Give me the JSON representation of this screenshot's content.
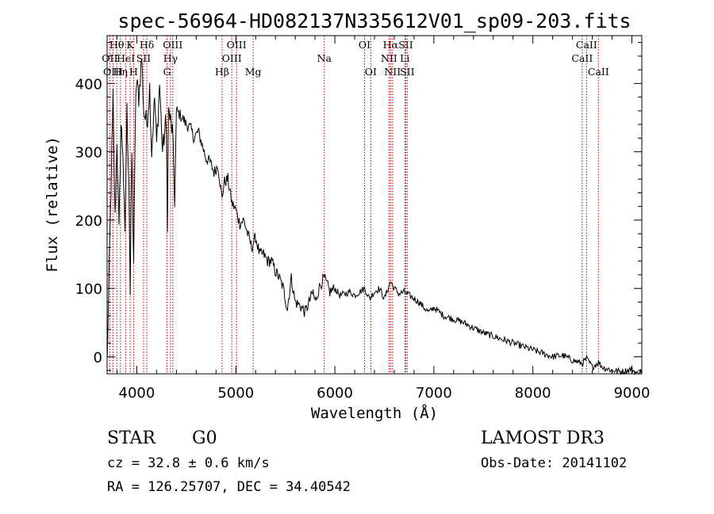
{
  "title": "spec-56964-HD082137N335612V01_sp09-203.fits",
  "info": {
    "object_class": "STAR",
    "subclass": "G0",
    "survey": "LAMOST DR3",
    "redshift": "cz = 32.8 ± 0.6 km/s",
    "obs_date": "Obs-Date: 20141102",
    "coords": "RA = 126.25707, DEC =  34.40542"
  },
  "chart_data": {
    "type": "line",
    "title": "spec-56964-HD082137N335612V01_sp09-203.fits",
    "xlabel": "Wavelength (Å)",
    "ylabel": "Flux (relative)",
    "xlim": [
      3700,
      9100
    ],
    "ylim": [
      -25,
      470
    ],
    "xticks": [
      4000,
      5000,
      6000,
      7000,
      8000,
      9000
    ],
    "yticks": [
      0,
      100,
      200,
      300,
      400
    ],
    "grid": false,
    "series": [
      {
        "name": "flux",
        "color": "#000000",
        "x": [
          3700,
          3720,
          3740,
          3760,
          3780,
          3800,
          3820,
          3840,
          3860,
          3880,
          3900,
          3920,
          3933,
          3950,
          3968,
          3990,
          4000,
          4020,
          4050,
          4070,
          4101,
          4130,
          4150,
          4180,
          4200,
          4230,
          4260,
          4290,
          4300,
          4310,
          4320,
          4340,
          4360,
          4383,
          4400,
          4430,
          4460,
          4500,
          4540,
          4580,
          4620,
          4660,
          4700,
          4740,
          4780,
          4820,
          4861,
          4880,
          4920,
          4960,
          5000,
          5040,
          5080,
          5120,
          5160,
          5200,
          5240,
          5280,
          5320,
          5360,
          5400,
          5440,
          5480,
          5520,
          5560,
          5600,
          5650,
          5700,
          5740,
          5780,
          5800,
          5850,
          5893,
          5950,
          6000,
          6050,
          6100,
          6150,
          6200,
          6250,
          6300,
          6350,
          6400,
          6450,
          6500,
          6563,
          6600,
          6650,
          6700,
          6750,
          6800,
          6850,
          6900,
          6950,
          7000,
          7100,
          7200,
          7300,
          7400,
          7500,
          7600,
          7700,
          7800,
          7900,
          8000,
          8100,
          8200,
          8300,
          8400,
          8498,
          8542,
          8600,
          8662,
          8700,
          8800,
          8900,
          9000,
          9050,
          9100
        ],
        "values": [
          -10,
          120,
          250,
          380,
          200,
          320,
          180,
          340,
          300,
          170,
          360,
          260,
          90,
          300,
          140,
          390,
          400,
          380,
          440,
          360,
          340,
          395,
          300,
          380,
          310,
          400,
          300,
          340,
          320,
          200,
          360,
          345,
          330,
          230,
          360,
          355,
          350,
          340,
          335,
          320,
          330,
          310,
          290,
          285,
          270,
          280,
          230,
          255,
          260,
          225,
          215,
          195,
          200,
          180,
          160,
          175,
          150,
          150,
          140,
          140,
          125,
          115,
          100,
          70,
          115,
          80,
          75,
          65,
          80,
          95,
          80,
          105,
          115,
          95,
          100,
          90,
          92,
          95,
          90,
          95,
          100,
          85,
          95,
          100,
          85,
          110,
          100,
          92,
          95,
          90,
          85,
          80,
          72,
          65,
          72,
          60,
          55,
          50,
          42,
          35,
          30,
          25,
          20,
          15,
          10,
          5,
          0,
          2,
          -5,
          -10,
          -3,
          -15,
          -8,
          -15,
          -20,
          -22,
          -18,
          -25,
          -20
        ]
      }
    ],
    "lines": [
      {
        "label": "Hθ",
        "wavelength": 3798,
        "row": 0
      },
      {
        "label": "OII",
        "wavelength": 3727,
        "row": 1
      },
      {
        "label": "OIII",
        "wavelength": 3760,
        "row": 2
      },
      {
        "label": "Hη",
        "wavelength": 3835,
        "row": 2
      },
      {
        "label": "HeI",
        "wavelength": 3889,
        "row": 1
      },
      {
        "label": "K",
        "wavelength": 3933,
        "row": 0
      },
      {
        "label": "H",
        "wavelength": 3968,
        "row": 2
      },
      {
        "label": "Hδ",
        "wavelength": 4101,
        "row": 0
      },
      {
        "label": "SII",
        "wavelength": 4068,
        "row": 1
      },
      {
        "label": "OIII",
        "wavelength": 4363,
        "row": 0
      },
      {
        "label": "Hγ",
        "wavelength": 4340,
        "row": 1
      },
      {
        "label": "G",
        "wavelength": 4305,
        "row": 2
      },
      {
        "label": "Hβ",
        "wavelength": 4861,
        "row": 2
      },
      {
        "label": "OIII",
        "wavelength": 5007,
        "row": 0
      },
      {
        "label": "OIII",
        "wavelength": 4959,
        "row": 1
      },
      {
        "label": "Mg",
        "wavelength": 5175,
        "row": 2
      },
      {
        "label": "Na",
        "wavelength": 5893,
        "row": 1
      },
      {
        "label": "OI",
        "wavelength": 6300,
        "row": 0
      },
      {
        "label": "OI",
        "wavelength": 6363,
        "row": 2
      },
      {
        "label": "Hα",
        "wavelength": 6563,
        "row": 0
      },
      {
        "label": "SII",
        "wavelength": 6716,
        "row": 0
      },
      {
        "label": "NII",
        "wavelength": 6548,
        "row": 1
      },
      {
        "label": "Li",
        "wavelength": 6707,
        "row": 1
      },
      {
        "label": "NII",
        "wavelength": 6583,
        "row": 2
      },
      {
        "label": "SII",
        "wavelength": 6731,
        "row": 2
      },
      {
        "label": "CaII",
        "wavelength": 8542,
        "row": 0
      },
      {
        "label": "CaII",
        "wavelength": 8498,
        "row": 1
      },
      {
        "label": "CaII",
        "wavelength": 8662,
        "row": 2
      }
    ]
  }
}
